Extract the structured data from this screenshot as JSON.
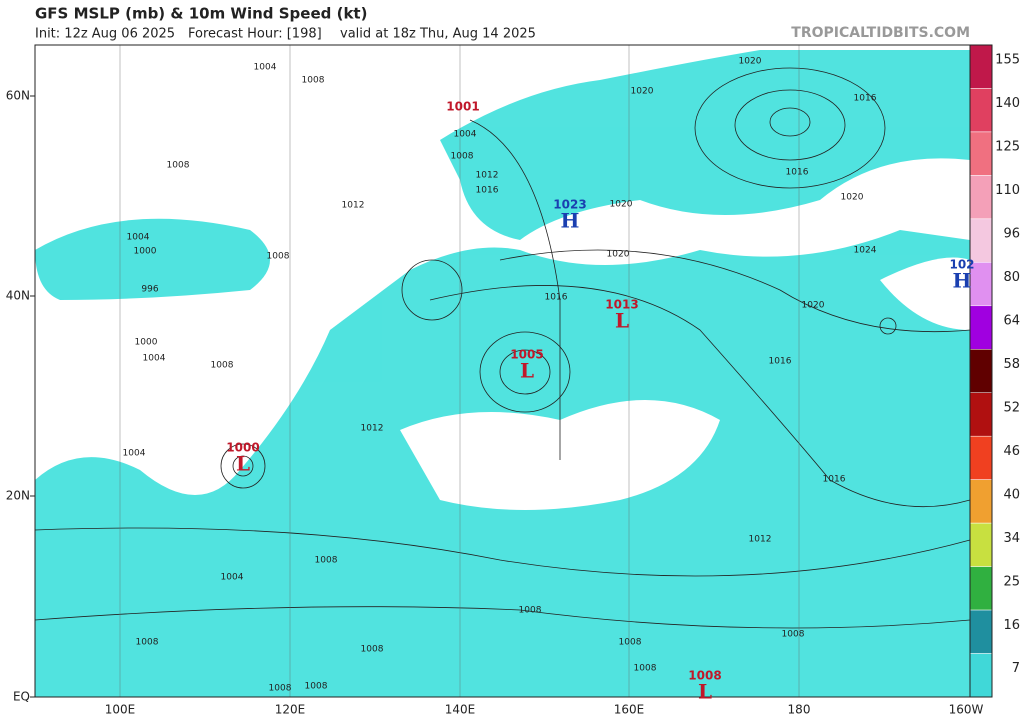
{
  "header": {
    "title": "GFS MSLP (mb) & 10m Wind Speed (kt)",
    "init": "Init: 12z Aug 06 2025",
    "forecast_hour": "Forecast Hour: [198]",
    "valid": "valid at 18z Thu, Aug 14 2025",
    "credit": "TROPICALTIDBITS.COM"
  },
  "map": {
    "lat_labels": [
      "60N",
      "40N",
      "20N",
      "EQ"
    ],
    "lon_labels": [
      "100E",
      "120E",
      "140E",
      "160E",
      "180",
      "160W"
    ],
    "centers": [
      {
        "value": "1001"
      },
      {
        "letter": "H",
        "value": "1023"
      },
      {
        "letter": "H",
        "value": "102"
      },
      {
        "letter": "L",
        "value": "1013"
      },
      {
        "letter": "L",
        "value": "1005"
      },
      {
        "letter": "L",
        "value": "1000"
      },
      {
        "letter": "L",
        "value": "1008"
      }
    ],
    "isobar_labels": [
      "1004",
      "1008",
      "1020",
      "1020",
      "1016",
      "1004",
      "1008",
      "1012",
      "1016",
      "1016",
      "1020",
      "1020",
      "1020",
      "1024",
      "1016",
      "1020",
      "1016",
      "1012",
      "1008",
      "1004",
      "1000",
      "1008",
      "996",
      "1000",
      "1004",
      "1008",
      "1012",
      "1004",
      "1016",
      "1012",
      "1008",
      "1004",
      "1008",
      "1008",
      "1008",
      "1008",
      "1008",
      "1008",
      "1008",
      "1008"
    ]
  },
  "colorbar": {
    "labels": [
      "155",
      "140",
      "125",
      "110",
      "96",
      "80",
      "64",
      "58",
      "52",
      "46",
      "40",
      "34",
      "25",
      "16",
      "7"
    ]
  }
}
